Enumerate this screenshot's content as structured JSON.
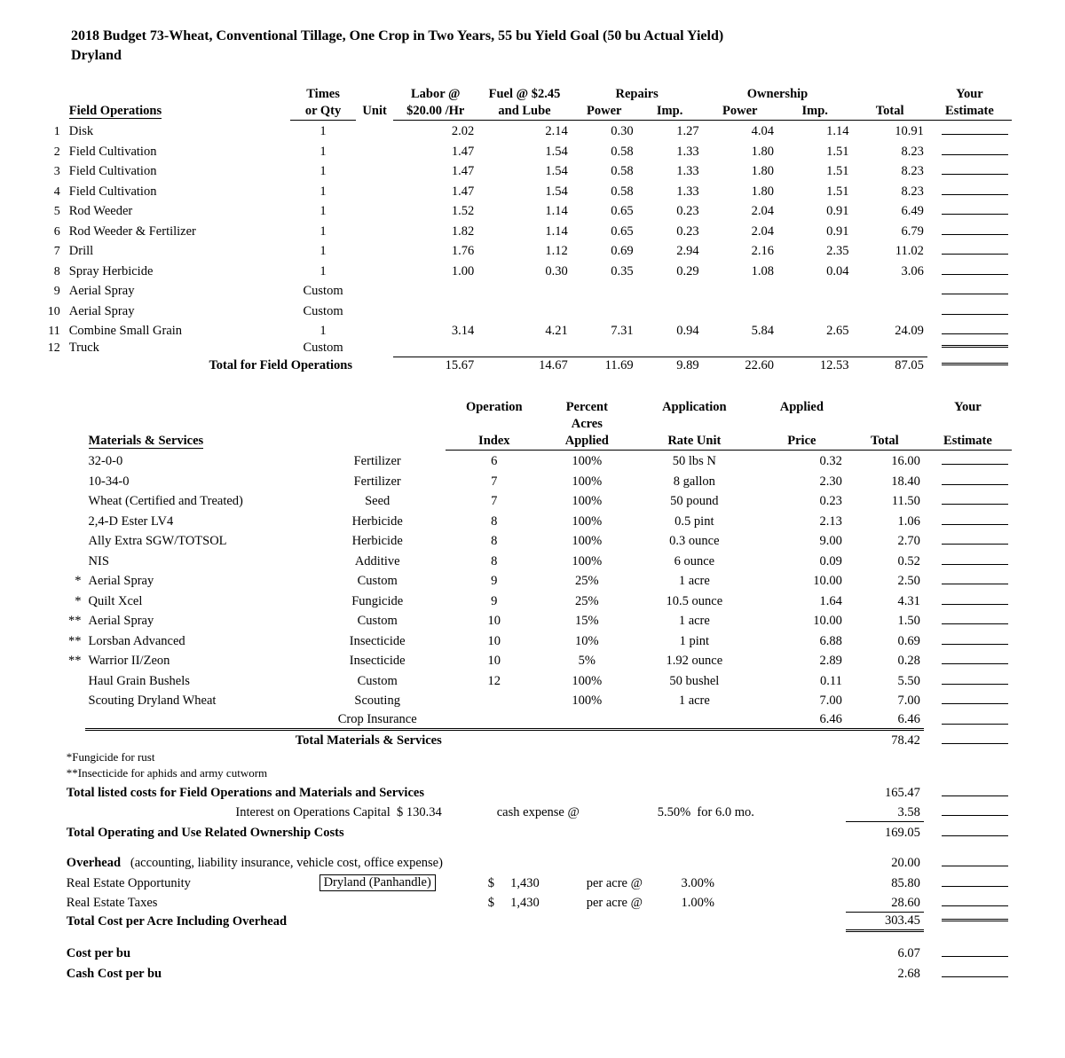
{
  "title_line1": "2018 Budget 73-Wheat, Conventional Tillage, One Crop in Two Years, 55 bu Yield Goal (50 bu Actual Yield)",
  "title_line2": "Dryland",
  "ops_headers": {
    "fieldops": "Field Operations",
    "times": "Times",
    "orqty": "or Qty",
    "unit": "Unit",
    "labor1": "Labor @",
    "labor2": "$20.00 /Hr",
    "fuel1": "Fuel @ $2.45",
    "fuel2": "and Lube",
    "repairs": "Repairs",
    "power": "Power",
    "imp": "Imp.",
    "ownership": "Ownership",
    "total": "Total",
    "your": "Your",
    "estimate": "Estimate"
  },
  "ops": [
    {
      "n": "1",
      "name": "Disk",
      "times": "1",
      "labor": "2.02",
      "fuel": "2.14",
      "rp": "0.30",
      "ri": "1.27",
      "op": "4.04",
      "oi": "1.14",
      "tot": "10.91"
    },
    {
      "n": "2",
      "name": "Field Cultivation",
      "times": "1",
      "labor": "1.47",
      "fuel": "1.54",
      "rp": "0.58",
      "ri": "1.33",
      "op": "1.80",
      "oi": "1.51",
      "tot": "8.23"
    },
    {
      "n": "3",
      "name": "Field Cultivation",
      "times": "1",
      "labor": "1.47",
      "fuel": "1.54",
      "rp": "0.58",
      "ri": "1.33",
      "op": "1.80",
      "oi": "1.51",
      "tot": "8.23"
    },
    {
      "n": "4",
      "name": "Field Cultivation",
      "times": "1",
      "labor": "1.47",
      "fuel": "1.54",
      "rp": "0.58",
      "ri": "1.33",
      "op": "1.80",
      "oi": "1.51",
      "tot": "8.23"
    },
    {
      "n": "5",
      "name": "Rod Weeder",
      "times": "1",
      "labor": "1.52",
      "fuel": "1.14",
      "rp": "0.65",
      "ri": "0.23",
      "op": "2.04",
      "oi": "0.91",
      "tot": "6.49"
    },
    {
      "n": "6",
      "name": "Rod Weeder & Fertilizer",
      "times": "1",
      "labor": "1.82",
      "fuel": "1.14",
      "rp": "0.65",
      "ri": "0.23",
      "op": "2.04",
      "oi": "0.91",
      "tot": "6.79"
    },
    {
      "n": "7",
      "name": "Drill",
      "times": "1",
      "labor": "1.76",
      "fuel": "1.12",
      "rp": "0.69",
      "ri": "2.94",
      "op": "2.16",
      "oi": "2.35",
      "tot": "11.02"
    },
    {
      "n": "8",
      "name": "Spray Herbicide",
      "times": "1",
      "labor": "1.00",
      "fuel": "0.30",
      "rp": "0.35",
      "ri": "0.29",
      "op": "1.08",
      "oi": "0.04",
      "tot": "3.06"
    },
    {
      "n": "9",
      "name": "Aerial Spray",
      "times": "Custom",
      "labor": "",
      "fuel": "",
      "rp": "",
      "ri": "",
      "op": "",
      "oi": "",
      "tot": ""
    },
    {
      "n": "10",
      "name": "Aerial Spray",
      "times": "Custom",
      "labor": "",
      "fuel": "",
      "rp": "",
      "ri": "",
      "op": "",
      "oi": "",
      "tot": ""
    },
    {
      "n": "11",
      "name": "Combine Small Grain",
      "times": "1",
      "labor": "3.14",
      "fuel": "4.21",
      "rp": "7.31",
      "ri": "0.94",
      "op": "5.84",
      "oi": "2.65",
      "tot": "24.09"
    },
    {
      "n": "12",
      "name": "Truck",
      "times": "Custom",
      "labor": "",
      "fuel": "",
      "rp": "",
      "ri": "",
      "op": "",
      "oi": "",
      "tot": ""
    }
  ],
  "ops_total_label": "Total for Field Operations",
  "ops_total": {
    "labor": "15.67",
    "fuel": "14.67",
    "rp": "11.69",
    "ri": "9.89",
    "op": "22.60",
    "oi": "12.53",
    "tot": "87.05"
  },
  "mat_headers": {
    "ms": "Materials & Services",
    "oi1": "Operation",
    "oi2": "Index",
    "pa1": "Percent",
    "pa2": "Acres",
    "pa3": "Applied",
    "ar1": "Application",
    "ar2": "Rate Unit",
    "ap1": "Applied",
    "ap2": "Price",
    "total": "Total",
    "your": "Your",
    "estimate": "Estimate"
  },
  "mats": [
    {
      "pre": "",
      "name": "32-0-0",
      "type": "Fertilizer",
      "oi": "6",
      "pa": "100%",
      "rate": "50 lbs N",
      "price": "0.32",
      "tot": "16.00"
    },
    {
      "pre": "",
      "name": "10-34-0",
      "type": "Fertilizer",
      "oi": "7",
      "pa": "100%",
      "rate": "8 gallon",
      "price": "2.30",
      "tot": "18.40"
    },
    {
      "pre": "",
      "name": "Wheat (Certified and Treated)",
      "type": "Seed",
      "oi": "7",
      "pa": "100%",
      "rate": "50 pound",
      "price": "0.23",
      "tot": "11.50"
    },
    {
      "pre": "",
      "name": "2,4-D Ester LV4",
      "type": "Herbicide",
      "oi": "8",
      "pa": "100%",
      "rate": "0.5 pint",
      "price": "2.13",
      "tot": "1.06"
    },
    {
      "pre": "",
      "name": "Ally Extra SGW/TOTSOL",
      "type": "Herbicide",
      "oi": "8",
      "pa": "100%",
      "rate": "0.3 ounce",
      "price": "9.00",
      "tot": "2.70"
    },
    {
      "pre": "",
      "name": "NIS",
      "type": "Additive",
      "oi": "8",
      "pa": "100%",
      "rate": "6 ounce",
      "price": "0.09",
      "tot": "0.52"
    },
    {
      "pre": "*",
      "name": "Aerial Spray",
      "type": "Custom",
      "oi": "9",
      "pa": "25%",
      "rate": "1 acre",
      "price": "10.00",
      "tot": "2.50"
    },
    {
      "pre": "*",
      "name": "Quilt Xcel",
      "type": "Fungicide",
      "oi": "9",
      "pa": "25%",
      "rate": "10.5 ounce",
      "price": "1.64",
      "tot": "4.31"
    },
    {
      "pre": "**",
      "name": "Aerial Spray",
      "type": "Custom",
      "oi": "10",
      "pa": "15%",
      "rate": "1 acre",
      "price": "10.00",
      "tot": "1.50"
    },
    {
      "pre": "**",
      "name": "Lorsban Advanced",
      "type": "Insecticide",
      "oi": "10",
      "pa": "10%",
      "rate": "1 pint",
      "price": "6.88",
      "tot": "0.69"
    },
    {
      "pre": "**",
      "name": "Warrior II/Zeon",
      "type": "Insecticide",
      "oi": "10",
      "pa": "5%",
      "rate": "1.92 ounce",
      "price": "2.89",
      "tot": "0.28"
    },
    {
      "pre": "",
      "name": "Haul Grain Bushels",
      "type": "Custom",
      "oi": "12",
      "pa": "100%",
      "rate": "50 bushel",
      "price": "0.11",
      "tot": "5.50"
    },
    {
      "pre": "",
      "name": "Scouting Dryland Wheat",
      "type": "Scouting",
      "oi": "",
      "pa": "100%",
      "rate": "1 acre",
      "price": "7.00",
      "tot": "7.00"
    },
    {
      "pre": "",
      "name": "",
      "type": "Crop Insurance",
      "oi": "",
      "pa": "",
      "rate": "",
      "price": "",
      "tot": "6.46",
      "extra": "6.46"
    }
  ],
  "mats_total_label": "Total Materials & Services",
  "mats_total": "78.42",
  "notes": {
    "n1": "*Fungicide for rust",
    "n2": "**Insecticide for aphids and army cutworm"
  },
  "summary": {
    "listed_label": "Total listed costs for Field Operations and Materials and Services",
    "listed_val": "165.47",
    "interest_label": "Interest on Operations Capital",
    "interest_amt": "$   130.34",
    "cash_exp": "cash expense @",
    "interest_pct": "5.50%",
    "interest_term": "for 6.0 mo.",
    "interest_val": "3.58",
    "opown_label": "Total Operating and Use Related Ownership Costs",
    "opown_val": "169.05",
    "overhead_label": "Overhead",
    "overhead_desc": "(accounting, liability insurance, vehicle cost, office expense)",
    "overhead_val": "20.00",
    "reo_label": "Real Estate Opportunity",
    "reo_region": "Dryland (Panhandle)",
    "reo_amt": "1,430",
    "per_acre": "per acre @",
    "reo_pct": "3.00%",
    "reo_val": "85.80",
    "ret_label": "Real Estate Taxes",
    "ret_amt": "1,430",
    "ret_pct": "1.00%",
    "ret_val": "28.60",
    "totcost_label": "Total Cost per Acre Including Overhead",
    "totcost_val": "303.45",
    "cpb_label": "Cost per bu",
    "cpb_val": "6.07",
    "ccpb_label": "Cash Cost per bu",
    "ccpb_val": "2.68"
  }
}
